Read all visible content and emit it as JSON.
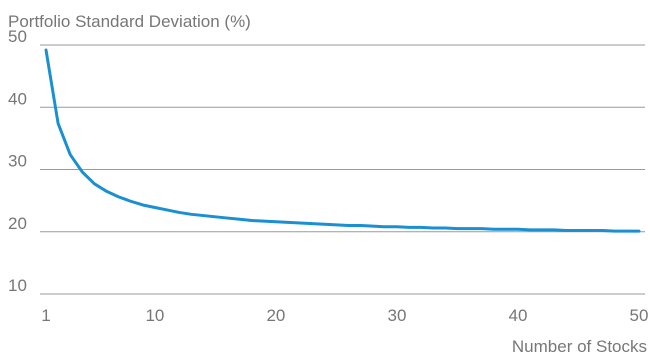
{
  "chart_data": {
    "type": "line",
    "title": "",
    "ylabel": "Portfolio Standard Deviation (%)",
    "xlabel": "Number of Stocks",
    "xlim": [
      1,
      50
    ],
    "ylim": [
      10,
      50
    ],
    "xticks": [
      1,
      10,
      20,
      30,
      40,
      50
    ],
    "yticks": [
      10,
      20,
      30,
      40,
      50
    ],
    "grid": "horizontal",
    "legend": "none",
    "series": [
      {
        "color": "#1a8fd1",
        "x": [
          1,
          2,
          3,
          4,
          5,
          6,
          7,
          8,
          9,
          10,
          11,
          12,
          13,
          14,
          15,
          16,
          17,
          18,
          19,
          20,
          21,
          22,
          23,
          24,
          25,
          26,
          27,
          28,
          29,
          30,
          31,
          32,
          33,
          34,
          35,
          36,
          37,
          38,
          39,
          40,
          41,
          42,
          43,
          44,
          45,
          46,
          47,
          48,
          49,
          50
        ],
        "y": [
          49.2,
          37.4,
          32.4,
          29.6,
          27.7,
          26.5,
          25.6,
          24.9,
          24.3,
          23.9,
          23.5,
          23.1,
          22.8,
          22.6,
          22.4,
          22.2,
          22.0,
          21.8,
          21.7,
          21.6,
          21.5,
          21.4,
          21.3,
          21.2,
          21.1,
          21.0,
          21.0,
          20.9,
          20.8,
          20.8,
          20.7,
          20.7,
          20.6,
          20.6,
          20.5,
          20.5,
          20.5,
          20.4,
          20.4,
          20.4,
          20.3,
          20.3,
          20.3,
          20.2,
          20.2,
          20.2,
          20.2,
          20.1,
          20.1,
          20.1
        ]
      }
    ]
  }
}
